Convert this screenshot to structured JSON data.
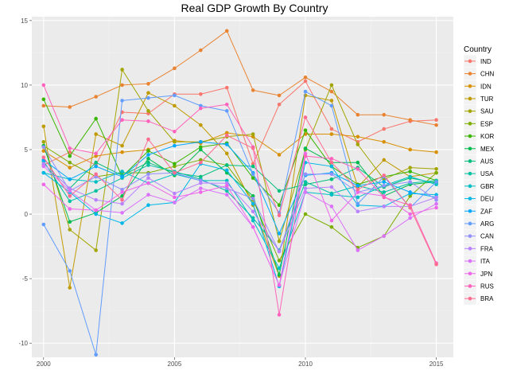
{
  "chart_data": {
    "type": "line",
    "title": "Real GDP Growth By Country",
    "xlabel": "",
    "ylabel": "",
    "x": [
      2000,
      2001,
      2002,
      2003,
      2004,
      2005,
      2006,
      2007,
      2008,
      2009,
      2010,
      2011,
      2012,
      2013,
      2014,
      2015
    ],
    "x_ticks": [
      2000,
      2005,
      2010,
      2015
    ],
    "y_ticks": [
      -10,
      -5,
      0,
      5,
      10,
      15
    ],
    "xlim": [
      1999.55,
      2015.65
    ],
    "ylim": [
      -11.1,
      15.3
    ],
    "grid": true,
    "legend": {
      "title": "Country",
      "position": "right"
    },
    "series": [
      {
        "name": "IND",
        "color": "#F8766D",
        "values": [
          3.8,
          4.8,
          3.8,
          7.9,
          7.8,
          9.3,
          9.3,
          9.8,
          3.9,
          8.5,
          10.3,
          6.6,
          5.6,
          6.6,
          7.2,
          7.3
        ]
      },
      {
        "name": "CHN",
        "color": "#EA8331",
        "values": [
          8.4,
          8.3,
          9.1,
          10.0,
          10.1,
          11.3,
          12.7,
          14.2,
          9.6,
          9.2,
          10.6,
          9.5,
          7.7,
          7.7,
          7.3,
          6.9
        ]
      },
      {
        "name": "IDN",
        "color": "#D89000",
        "values": [
          4.9,
          3.6,
          4.5,
          4.8,
          5.0,
          5.7,
          5.5,
          6.3,
          6.0,
          4.6,
          6.2,
          6.2,
          6.0,
          5.6,
          5.0,
          4.8
        ]
      },
      {
        "name": "TUR",
        "color": "#C09B00",
        "values": [
          6.8,
          -5.7,
          6.2,
          5.3,
          9.4,
          8.4,
          6.9,
          4.7,
          0.7,
          -4.8,
          9.2,
          8.8,
          2.1,
          4.2,
          2.9,
          3.2
        ]
      },
      {
        "name": "SAU",
        "color": "#A3A500",
        "values": [
          5.6,
          -1.2,
          -2.8,
          11.2,
          8.0,
          5.6,
          5.6,
          6.0,
          6.2,
          -2.1,
          5.0,
          10.0,
          5.4,
          2.7,
          3.6,
          3.5
        ]
      },
      {
        "name": "ESP",
        "color": "#7CAE00",
        "values": [
          5.3,
          4.0,
          2.9,
          3.2,
          3.2,
          3.7,
          4.2,
          3.8,
          1.1,
          -3.6,
          0.0,
          -1.0,
          -2.6,
          -1.7,
          1.4,
          3.2
        ]
      },
      {
        "name": "KOR",
        "color": "#39B600",
        "values": [
          8.9,
          4.5,
          7.4,
          2.9,
          4.9,
          3.9,
          5.2,
          5.5,
          2.8,
          0.7,
          6.5,
          3.7,
          2.3,
          2.9,
          3.3,
          2.6
        ]
      },
      {
        "name": "MEX",
        "color": "#00BB4E",
        "values": [
          5.3,
          -0.6,
          0.1,
          1.4,
          4.3,
          3.0,
          5.0,
          3.2,
          1.4,
          -4.7,
          5.1,
          4.0,
          4.0,
          1.4,
          2.3,
          2.5
        ]
      },
      {
        "name": "AUS",
        "color": "#00BF7D",
        "values": [
          3.9,
          2.0,
          4.0,
          3.0,
          4.0,
          3.2,
          2.9,
          3.8,
          3.7,
          1.8,
          2.3,
          2.7,
          3.6,
          2.1,
          2.8,
          2.4
        ]
      },
      {
        "name": "USA",
        "color": "#00C1A3",
        "values": [
          4.1,
          1.0,
          1.8,
          2.8,
          3.8,
          3.3,
          2.7,
          1.8,
          -0.3,
          -2.8,
          2.5,
          1.6,
          2.2,
          1.7,
          2.4,
          2.6
        ]
      },
      {
        "name": "GBR",
        "color": "#00BFC4",
        "values": [
          3.2,
          2.7,
          2.5,
          3.3,
          2.4,
          3.1,
          2.6,
          2.6,
          -0.5,
          -4.2,
          1.7,
          1.5,
          1.3,
          2.2,
          2.9,
          2.3
        ]
      },
      {
        "name": "DEU",
        "color": "#00B8E7",
        "values": [
          3.2,
          1.7,
          0.0,
          -0.7,
          0.7,
          0.9,
          3.9,
          3.4,
          0.8,
          -5.6,
          4.0,
          3.7,
          0.7,
          0.6,
          1.6,
          1.5
        ]
      },
      {
        "name": "ZAF",
        "color": "#00A9FF",
        "values": [
          4.2,
          2.7,
          3.7,
          2.9,
          4.6,
          5.3,
          5.6,
          5.4,
          3.2,
          -1.5,
          3.0,
          3.2,
          2.2,
          2.5,
          1.7,
          1.3
        ]
      },
      {
        "name": "ARG",
        "color": "#619CFF",
        "values": [
          -0.8,
          -4.4,
          -10.9,
          8.8,
          9.0,
          9.2,
          8.4,
          8.0,
          3.1,
          0.1,
          9.5,
          8.4,
          0.8,
          2.9,
          0.5,
          2.5
        ]
      },
      {
        "name": "CAN",
        "color": "#9590FF",
        "values": [
          5.2,
          1.8,
          2.9,
          1.9,
          3.1,
          3.2,
          2.6,
          2.0,
          1.2,
          -2.9,
          3.1,
          3.1,
          1.7,
          2.2,
          2.5,
          1.1
        ]
      },
      {
        "name": "FRA",
        "color": "#B983FF",
        "values": [
          3.9,
          2.0,
          1.1,
          0.8,
          2.8,
          1.6,
          2.4,
          2.4,
          0.2,
          -2.9,
          2.0,
          2.1,
          0.2,
          0.6,
          0.6,
          1.3
        ]
      },
      {
        "name": "ITA",
        "color": "#DB72FB",
        "values": [
          3.7,
          1.8,
          0.3,
          0.1,
          1.5,
          0.9,
          2.0,
          1.5,
          -1.0,
          -5.5,
          1.7,
          0.6,
          -2.8,
          -1.7,
          -0.3,
          0.8
        ]
      },
      {
        "name": "JPN",
        "color": "#F066EA",
        "values": [
          2.3,
          0.4,
          0.3,
          1.7,
          2.4,
          1.3,
          1.7,
          2.2,
          -1.0,
          -5.5,
          4.7,
          -0.5,
          1.7,
          1.4,
          0.0,
          0.5
        ]
      },
      {
        "name": "RUS",
        "color": "#FF62BC",
        "values": [
          10.0,
          5.1,
          4.7,
          7.3,
          7.2,
          6.4,
          8.2,
          8.5,
          5.2,
          -7.8,
          4.5,
          4.3,
          3.5,
          1.3,
          0.7,
          -3.8
        ]
      },
      {
        "name": "BRA",
        "color": "#FF6C91",
        "values": [
          4.4,
          1.4,
          3.1,
          1.1,
          5.8,
          3.2,
          4.0,
          6.1,
          5.1,
          -0.1,
          7.5,
          4.0,
          1.9,
          3.0,
          0.5,
          -3.9
        ]
      }
    ]
  }
}
